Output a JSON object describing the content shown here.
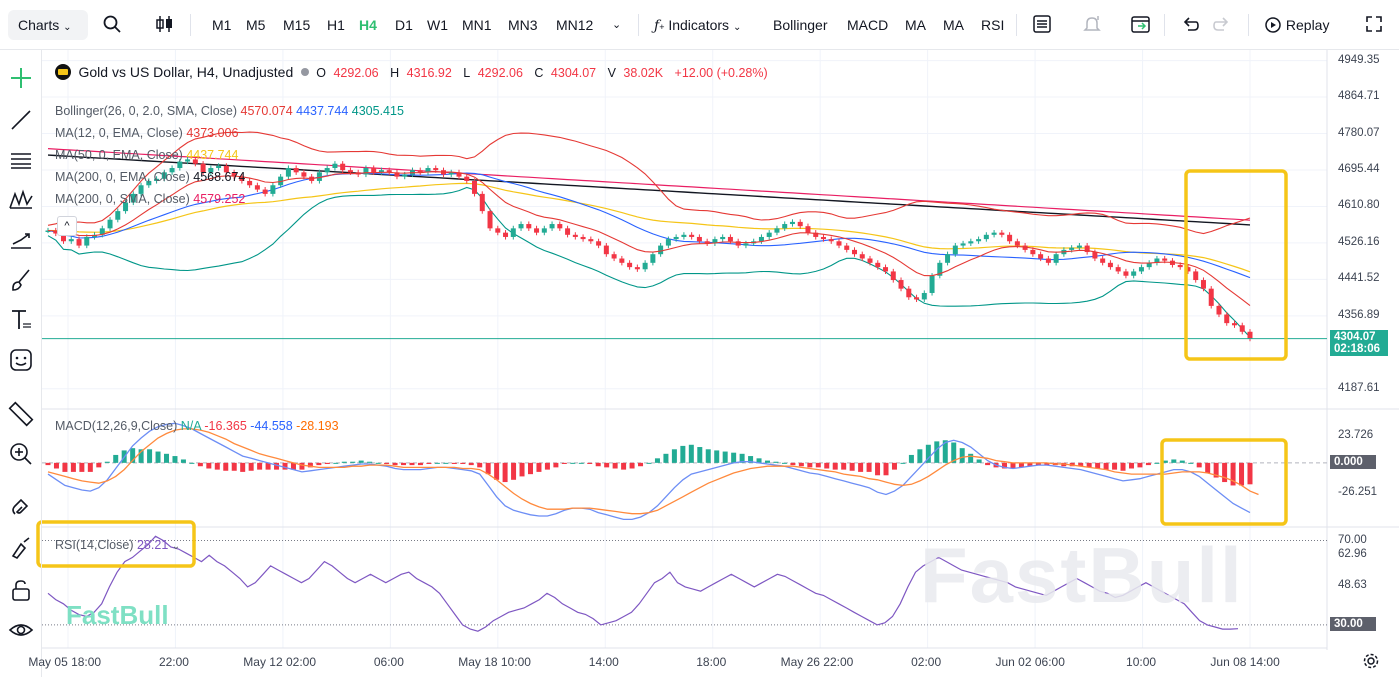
{
  "toolbar": {
    "charts_label": "Charts",
    "intervals": [
      "M1",
      "M5",
      "M15",
      "H1",
      "H4",
      "D1",
      "W1",
      "MN1",
      "MN3",
      "MN12"
    ],
    "active_interval": "H4",
    "indicators_label": "Indicators",
    "quick_indicators": [
      "Bollinger",
      "MACD",
      "MA",
      "MA",
      "RSI"
    ],
    "replay_label": "Replay"
  },
  "legend": {
    "symbol": "Gold vs US Dollar, H4, Unadjusted",
    "open_label": "O",
    "open": "4292.06",
    "high_label": "H",
    "high": "4316.92",
    "low_label": "L",
    "low": "4292.06",
    "close_label": "C",
    "close": "4304.07",
    "volume_label": "V",
    "volume": "38.02K",
    "change": "+12.00 (+0.28%)"
  },
  "indicators": [
    {
      "label": "Bollinger(26, 0, 2.0, SMA, Close)",
      "values": [
        "4570.074",
        "4437.744",
        "4305.415"
      ],
      "colors": [
        "#e53935",
        "#2962ff",
        "#009688"
      ]
    },
    {
      "label": "MA(12, 0, EMA, Close)",
      "values": [
        "4373.006"
      ],
      "colors": [
        "#e53935"
      ]
    },
    {
      "label": "MA(50, 0, EMA, Close)",
      "values": [
        "4437.744"
      ],
      "colors": [
        "#f5c518"
      ]
    },
    {
      "label": "MA(200, 0, EMA, Close)",
      "values": [
        "4568.674"
      ],
      "colors": [
        "#131722"
      ]
    },
    {
      "label": "MA(200, 0, SMA, Close)",
      "values": [
        "4579.252"
      ],
      "colors": [
        "#e91e63"
      ]
    }
  ],
  "macd_legend": {
    "label": "MACD(12,26,9,Close)",
    "na": "N/A",
    "v1": "-16.365",
    "v2": "-44.558",
    "v3": "-28.193"
  },
  "rsi_legend": {
    "label": "RSI(14,Close)",
    "value": "28.21"
  },
  "price_tag": {
    "price": "4304.07",
    "countdown": "02:18:06"
  },
  "macd_tag": "0.000",
  "rsi_tag": "30.00",
  "watermark": "FastBull",
  "colors": {
    "up": "#22ab94",
    "down": "#f23645",
    "accent": "#2fbf71",
    "highlight": "#f5c518"
  },
  "chart_data": [
    {
      "type": "candlestick",
      "title": "Gold vs US Dollar, H4, Unadjusted",
      "y_ticks": [
        "4949.35",
        "4864.71",
        "4780.07",
        "4695.44",
        "4610.80",
        "4526.16",
        "4441.52",
        "4356.89",
        "4187.61"
      ],
      "x_ticks": [
        "May 05 18:00",
        "22:00",
        "May 12 02:00",
        "06:00",
        "May 18 10:00",
        "14:00",
        "18:00",
        "May 26 22:00",
        "02:00",
        "Jun 02 06:00",
        "10:00",
        "Jun 08 14:00"
      ],
      "ylim": [
        4150,
        4960
      ],
      "closes": [
        4555,
        4548,
        4530,
        4535,
        4520,
        4540,
        4545,
        4560,
        4580,
        4600,
        4620,
        4640,
        4660,
        4670,
        4675,
        4690,
        4700,
        4715,
        4720,
        4710,
        4690,
        4700,
        4705,
        4690,
        4680,
        4670,
        4660,
        4650,
        4640,
        4660,
        4680,
        4700,
        4690,
        4680,
        4670,
        4690,
        4700,
        4710,
        4695,
        4690,
        4685,
        4700,
        4690,
        4695,
        4690,
        4680,
        4685,
        4695,
        4690,
        4700,
        4695,
        4685,
        4690,
        4680,
        4670,
        4640,
        4600,
        4560,
        4550,
        4540,
        4560,
        4570,
        4560,
        4550,
        4560,
        4570,
        4560,
        4545,
        4540,
        4535,
        4530,
        4520,
        4500,
        4490,
        4480,
        4470,
        4465,
        4480,
        4500,
        4520,
        4535,
        4540,
        4545,
        4540,
        4530,
        4525,
        4535,
        4540,
        4530,
        4520,
        4525,
        4530,
        4540,
        4550,
        4560,
        4570,
        4575,
        4565,
        4550,
        4540,
        4535,
        4530,
        4520,
        4510,
        4500,
        4490,
        4480,
        4470,
        4460,
        4440,
        4420,
        4400,
        4395,
        4410,
        4450,
        4480,
        4500,
        4520,
        4525,
        4530,
        4535,
        4545,
        4550,
        4545,
        4530,
        4520,
        4510,
        4500,
        4490,
        4480,
        4500,
        4510,
        4515,
        4520,
        4505,
        4490,
        4480,
        4470,
        4460,
        4450,
        4460,
        4470,
        4480,
        4490,
        4485,
        4475,
        4470,
        4460,
        4440,
        4420,
        4380,
        4360,
        4340,
        4335,
        4320,
        4304
      ],
      "series": [
        {
          "name": "Bollinger(26, 0, 2.0, SMA, Close)",
          "values": [
            "4570.074",
            "4437.744",
            "4305.415"
          ]
        },
        {
          "name": "MA(12, 0, EMA, Close)",
          "values": [
            "4373.006"
          ]
        },
        {
          "name": "MA(50, 0, EMA, Close)",
          "values": [
            "4437.744"
          ]
        },
        {
          "name": "MA(200, 0, EMA, Close)",
          "values": [
            "4568.674"
          ]
        },
        {
          "name": "MA(200, 0, SMA, Close)",
          "values": [
            "4579.252"
          ]
        }
      ],
      "last_close": 4304.07
    },
    {
      "type": "line",
      "title": "MACD(12,26,9,Close)",
      "y_ticks": [
        "23.726",
        "0.000",
        "-26.251"
      ],
      "ylim": [
        -55,
        45
      ],
      "macd": [
        -10,
        -15,
        -20,
        -22,
        -24,
        -25,
        -22,
        -15,
        -5,
        5,
        15,
        22,
        28,
        32,
        34,
        35,
        33,
        30,
        26,
        22,
        18,
        14,
        10,
        6,
        4,
        2,
        0,
        -2,
        -4,
        -6,
        -8,
        -7,
        -6,
        -5,
        -4,
        -3,
        -2,
        -1,
        -1,
        -2,
        -3,
        -5,
        -6,
        -6,
        -6,
        -5,
        -4,
        -4,
        -5,
        -6,
        -7,
        -10,
        -20,
        -30,
        -38,
        -42,
        -44,
        -46,
        -47,
        -47,
        -45,
        -42,
        -40,
        -40,
        -41,
        -44,
        -46,
        -48,
        -50,
        -50,
        -48,
        -44,
        -38,
        -30,
        -22,
        -15,
        -10,
        -8,
        -6,
        -4,
        -2,
        0,
        1,
        1,
        0,
        -1,
        -2,
        -3,
        -5,
        -7,
        -9,
        -10,
        -12,
        -14,
        -16,
        -18,
        -20,
        -22,
        -26,
        -28,
        -25,
        -20,
        -12,
        -4,
        4,
        12,
        18,
        20,
        18,
        14,
        8,
        2,
        -2,
        -4,
        -5,
        -4,
        -3,
        -2,
        -2,
        -3,
        -4,
        -5,
        -6,
        -8,
        -10,
        -12,
        -14,
        -16,
        -15,
        -14,
        -12,
        -10,
        -8,
        -6,
        -6,
        -8,
        -12,
        -18,
        -24,
        -30,
        -36,
        -40,
        -44
      ],
      "signal": [
        -8,
        -10,
        -12,
        -14,
        -16,
        -17,
        -18,
        -16,
        -12,
        -6,
        2,
        10,
        16,
        22,
        26,
        29,
        30,
        30,
        29,
        27,
        24,
        21,
        17,
        14,
        11,
        8,
        6,
        4,
        2,
        0,
        -2,
        -3,
        -4,
        -4,
        -4,
        -4,
        -3,
        -3,
        -2,
        -2,
        -2,
        -3,
        -4,
        -4,
        -4,
        -4,
        -4,
        -4,
        -4,
        -5,
        -5,
        -6,
        -10,
        -15,
        -21,
        -27,
        -32,
        -36,
        -39,
        -41,
        -41,
        -41,
        -40,
        -40,
        -40,
        -41,
        -42,
        -43,
        -44,
        -45,
        -45,
        -44,
        -42,
        -38,
        -34,
        -30,
        -26,
        -22,
        -18,
        -15,
        -12,
        -9,
        -7,
        -5,
        -4,
        -3,
        -3,
        -3,
        -3,
        -4,
        -5,
        -6,
        -7,
        -8,
        -10,
        -11,
        -12,
        -14,
        -15,
        -17,
        -19,
        -20,
        -19,
        -16,
        -12,
        -7,
        -2,
        2,
        5,
        6,
        5,
        4,
        2,
        1,
        0,
        0,
        0,
        0,
        0,
        -1,
        -1,
        -2,
        -3,
        -4,
        -5,
        -6,
        -8,
        -9,
        -10,
        -10,
        -10,
        -10,
        -10,
        -9,
        -8,
        -8,
        -8,
        -9,
        -11,
        -13,
        -16,
        -20,
        -25,
        -28
      ],
      "series": [
        {
          "name": "N/A",
          "value": "-16.365"
        },
        {
          "name": "",
          "value": "-44.558"
        },
        {
          "name": "",
          "value": "-28.193"
        }
      ]
    },
    {
      "type": "line",
      "title": "RSI(14,Close)",
      "y_ticks": [
        "70.00",
        "62.96",
        "48.63",
        "30.00"
      ],
      "ylim": [
        20,
        75
      ],
      "values": [
        45,
        42,
        40,
        37,
        35,
        34,
        36,
        40,
        48,
        55,
        60,
        62,
        65,
        68,
        72,
        70,
        67,
        66,
        64,
        62,
        60,
        63,
        60,
        58,
        55,
        52,
        48,
        50,
        54,
        58,
        56,
        54,
        52,
        50,
        52,
        56,
        60,
        58,
        55,
        52,
        50,
        52,
        54,
        52,
        50,
        52,
        54,
        55,
        52,
        50,
        48,
        45,
        40,
        35,
        30,
        28,
        27,
        29,
        32,
        34,
        36,
        37,
        38,
        40,
        42,
        45,
        43,
        40,
        38,
        36,
        35,
        33,
        30,
        31,
        32,
        34,
        36,
        40,
        45,
        50,
        52,
        55,
        50,
        48,
        47,
        46,
        48,
        50,
        52,
        54,
        52,
        50,
        48,
        50,
        52,
        54,
        53,
        51,
        49,
        47,
        45,
        44,
        42,
        40,
        38,
        36,
        34,
        32,
        30,
        31,
        34,
        40,
        48,
        55,
        58,
        60,
        62,
        60,
        58,
        56,
        55,
        54,
        53,
        52,
        51,
        50,
        48,
        47,
        46,
        45,
        44,
        46,
        48,
        50,
        52,
        50,
        48,
        46,
        45,
        43,
        44,
        46,
        48,
        50,
        48,
        46,
        44,
        42,
        40,
        36,
        32,
        30,
        29,
        28,
        28,
        28.21
      ],
      "series": [
        {
          "name": "RSI(14,Close)",
          "value": "28.21"
        }
      ],
      "bands": [
        70,
        30
      ]
    }
  ]
}
